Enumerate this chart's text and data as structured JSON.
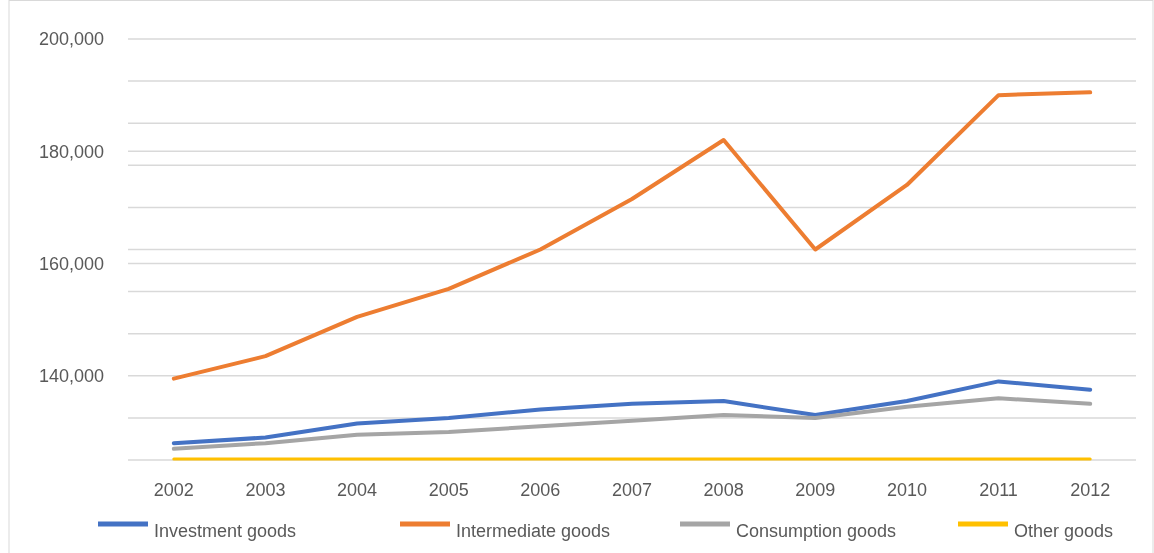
{
  "chart_data": {
    "type": "line",
    "categories": [
      "2002",
      "2003",
      "2004",
      "2005",
      "2006",
      "2007",
      "2008",
      "2009",
      "2010",
      "2011",
      "2012"
    ],
    "series": [
      {
        "name": "Investment goods",
        "color": "#4472c4",
        "values": [
          128000,
          129000,
          131500,
          132500,
          134000,
          135000,
          135500,
          133000,
          135500,
          139000,
          137500
        ]
      },
      {
        "name": "Intermediate goods",
        "color": "#ed7d31",
        "values": [
          139500,
          143500,
          150500,
          155500,
          162500,
          171500,
          182000,
          162500,
          174000,
          190000,
          190500
        ]
      },
      {
        "name": "Consumption goods",
        "color": "#a5a5a5",
        "values": [
          127000,
          128000,
          129500,
          130000,
          131000,
          132000,
          133000,
          132500,
          134500,
          136000,
          135000
        ]
      },
      {
        "name": "Other goods",
        "color": "#ffc000",
        "values": [
          125200,
          125200,
          125200,
          125200,
          125200,
          125200,
          125200,
          125200,
          125200,
          125200,
          125200
        ]
      }
    ],
    "ylim": [
      125000,
      200000
    ],
    "yticks": [
      {
        "value": 200000,
        "label": "200,000"
      },
      {
        "value": 192500,
        "label": null
      },
      {
        "value": 185000,
        "label": null
      },
      {
        "value": 180000,
        "label": "180,000"
      },
      {
        "value": 177500,
        "label": null
      },
      {
        "value": 170000,
        "label": null
      },
      {
        "value": 162500,
        "label": null
      },
      {
        "value": 160000,
        "label": "160,000"
      },
      {
        "value": 155000,
        "label": null
      },
      {
        "value": 147500,
        "label": null
      },
      {
        "value": 140000,
        "label": "140,000"
      },
      {
        "value": 132500,
        "label": null
      },
      {
        "value": 125000,
        "label": null
      }
    ],
    "grid": "y",
    "legend": "bottom",
    "marker": "none",
    "line_style": "solid"
  }
}
